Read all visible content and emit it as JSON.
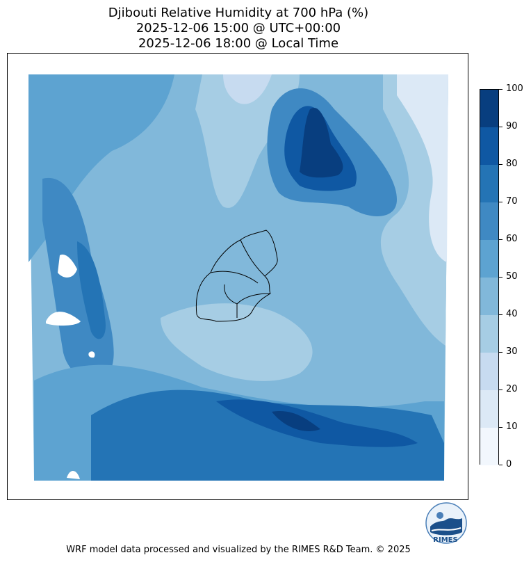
{
  "title": {
    "line1": "Djibouti Relative Humidity at 700 hPa (%)",
    "line2": "2025-12-06 15:00 @ UTC+00:00",
    "line3": "2025-12-06 18:00 @ Local Time"
  },
  "colorbar": {
    "ticks": [
      "0",
      "10",
      "20",
      "30",
      "40",
      "50",
      "60",
      "70",
      "80",
      "90",
      "100"
    ],
    "colors": [
      "#f2f7fd",
      "#dce9f6",
      "#c7dbf0",
      "#a6cde4",
      "#81b8da",
      "#5da3d1",
      "#3f89c3",
      "#2474b5",
      "#0f58a3",
      "#083e7f"
    ]
  },
  "logo": {
    "text": "RIMES"
  },
  "footer": "WRF model data processed and visualized by the RIMES R&D Team. © 2025"
}
